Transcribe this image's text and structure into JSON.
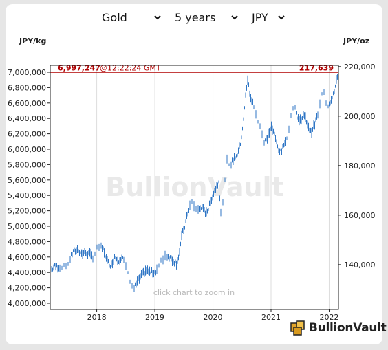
{
  "controls": {
    "metal": {
      "value": "Gold"
    },
    "period": {
      "value": "5 years"
    },
    "currency": {
      "value": "JPY"
    }
  },
  "hint": "click chart to zoom in",
  "watermark": "BullionVault",
  "logo_text": "BullionVault",
  "current": {
    "price_kg": "6,997,247",
    "time": "@12:22:24 GMT",
    "price_oz": "217,639"
  },
  "colors": {
    "series": "#2f76c5",
    "current_line": "#b00000",
    "grid": "#dddddd"
  },
  "chart_data": {
    "type": "line",
    "style": "ohlc-bars",
    "left_axis": {
      "label": "JPY/kg",
      "min": 4000000,
      "max": 7000000,
      "ticks": [
        "4,000,000",
        "4,200,000",
        "4,400,000",
        "4,600,000",
        "4,800,000",
        "5,000,000",
        "5,200,000",
        "5,400,000",
        "5,600,000",
        "5,800,000",
        "6,000,000",
        "6,200,000",
        "6,400,000",
        "6,600,000",
        "6,800,000",
        "7,000,000"
      ]
    },
    "right_axis": {
      "label": "JPY/oz",
      "ticks": [
        "140,000",
        "160,000",
        "180,000",
        "200,000",
        "220,000"
      ],
      "tick_values": [
        140000,
        160000,
        180000,
        200000,
        220000
      ],
      "conversion": 32.1507
    },
    "x_axis": {
      "ticks": [
        "2018",
        "2019",
        "2020",
        "2021",
        "2022"
      ],
      "tick_values": [
        2018,
        2019,
        2020,
        2021,
        2022
      ],
      "range": [
        2017.2,
        2022.16
      ]
    },
    "grid": true,
    "current_value_kg": 6997247,
    "current_value_oz": 217639,
    "series": [
      {
        "points": [
          [
            2017.2,
            4420000
          ],
          [
            2017.28,
            4480000
          ],
          [
            2017.36,
            4470000
          ],
          [
            2017.44,
            4500000
          ],
          [
            2017.5,
            4460000
          ],
          [
            2017.56,
            4620000
          ],
          [
            2017.62,
            4680000
          ],
          [
            2017.68,
            4700000
          ],
          [
            2017.74,
            4640000
          ],
          [
            2017.8,
            4660000
          ],
          [
            2017.87,
            4640000
          ],
          [
            2017.94,
            4600000
          ],
          [
            2018.0,
            4700000
          ],
          [
            2018.06,
            4740000
          ],
          [
            2018.12,
            4690000
          ],
          [
            2018.18,
            4540000
          ],
          [
            2018.25,
            4490000
          ],
          [
            2018.31,
            4610000
          ],
          [
            2018.37,
            4560000
          ],
          [
            2018.44,
            4600000
          ],
          [
            2018.5,
            4480000
          ],
          [
            2018.56,
            4310000
          ],
          [
            2018.6,
            4250000
          ],
          [
            2018.64,
            4190000
          ],
          [
            2018.7,
            4280000
          ],
          [
            2018.78,
            4370000
          ],
          [
            2018.85,
            4430000
          ],
          [
            2018.92,
            4400000
          ],
          [
            2019.0,
            4410000
          ],
          [
            2019.06,
            4460000
          ],
          [
            2019.12,
            4560000
          ],
          [
            2019.18,
            4620000
          ],
          [
            2019.25,
            4600000
          ],
          [
            2019.31,
            4560000
          ],
          [
            2019.37,
            4520000
          ],
          [
            2019.42,
            4640000
          ],
          [
            2019.47,
            4900000
          ],
          [
            2019.52,
            5010000
          ],
          [
            2019.58,
            5210000
          ],
          [
            2019.63,
            5330000
          ],
          [
            2019.68,
            5240000
          ],
          [
            2019.74,
            5200000
          ],
          [
            2019.8,
            5250000
          ],
          [
            2019.86,
            5180000
          ],
          [
            2019.92,
            5220000
          ],
          [
            2019.98,
            5370000
          ],
          [
            2020.04,
            5480000
          ],
          [
            2020.1,
            5580000
          ],
          [
            2020.15,
            5050000
          ],
          [
            2020.19,
            5520000
          ],
          [
            2020.24,
            5860000
          ],
          [
            2020.3,
            5780000
          ],
          [
            2020.36,
            5880000
          ],
          [
            2020.42,
            5940000
          ],
          [
            2020.47,
            6050000
          ],
          [
            2020.52,
            6350000
          ],
          [
            2020.57,
            6750000
          ],
          [
            2020.6,
            6900000
          ],
          [
            2020.64,
            6700000
          ],
          [
            2020.7,
            6560000
          ],
          [
            2020.76,
            6380000
          ],
          [
            2020.82,
            6300000
          ],
          [
            2020.88,
            6080000
          ],
          [
            2020.94,
            6160000
          ],
          [
            2021.0,
            6300000
          ],
          [
            2021.06,
            6180000
          ],
          [
            2021.12,
            6020000
          ],
          [
            2021.17,
            5960000
          ],
          [
            2021.22,
            6040000
          ],
          [
            2021.28,
            6190000
          ],
          [
            2021.34,
            6400000
          ],
          [
            2021.4,
            6600000
          ],
          [
            2021.45,
            6400000
          ],
          [
            2021.5,
            6380000
          ],
          [
            2021.56,
            6440000
          ],
          [
            2021.62,
            6350000
          ],
          [
            2021.68,
            6220000
          ],
          [
            2021.74,
            6300000
          ],
          [
            2021.8,
            6440000
          ],
          [
            2021.86,
            6640000
          ],
          [
            2021.9,
            6800000
          ],
          [
            2021.94,
            6620000
          ],
          [
            2021.99,
            6570000
          ],
          [
            2022.04,
            6670000
          ],
          [
            2022.09,
            6750000
          ],
          [
            2022.13,
            6900000
          ],
          [
            2022.16,
            6997247
          ]
        ]
      }
    ]
  }
}
